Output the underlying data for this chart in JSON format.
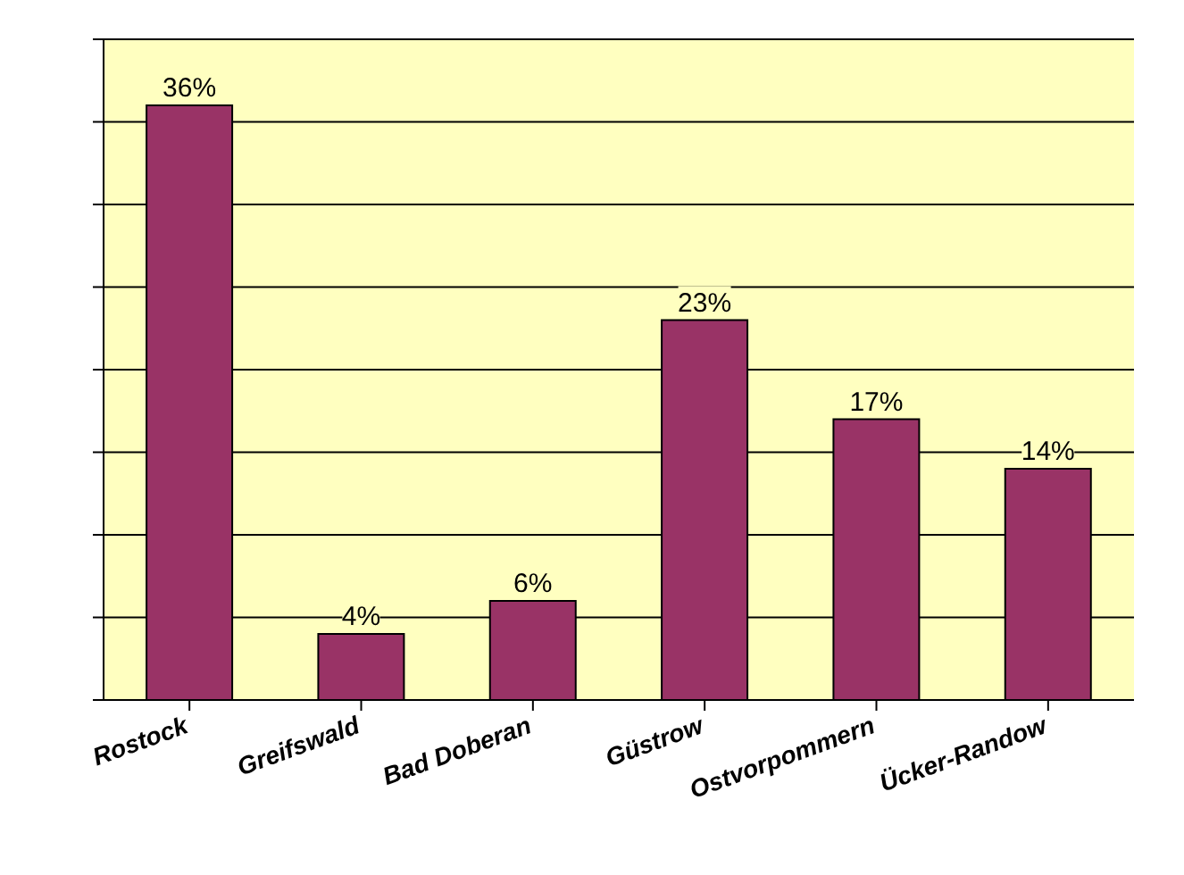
{
  "chart_data": {
    "type": "bar",
    "categories": [
      "Rostock",
      "Greifswald",
      "Bad Doberan",
      "Güstrow",
      "Ostvorpommern",
      "Ücker-Randow"
    ],
    "values": [
      36,
      4,
      6,
      23,
      17,
      14
    ],
    "value_labels": [
      "36%",
      "4%",
      "6%",
      "23%",
      "17%",
      "14%"
    ],
    "color": "#993366",
    "ylim": [
      0,
      40
    ],
    "yticks": [
      {
        "value": 0,
        "label": null
      },
      {
        "value": 5,
        "label": null
      },
      {
        "value": 10,
        "label": null
      },
      {
        "value": 15,
        "label": null
      },
      {
        "value": 20,
        "label": null
      },
      {
        "value": 25,
        "label": null
      },
      {
        "value": 30,
        "label": null
      },
      {
        "value": 35,
        "label": null
      },
      {
        "value": 40,
        "label": null
      }
    ],
    "grid": "y"
  }
}
